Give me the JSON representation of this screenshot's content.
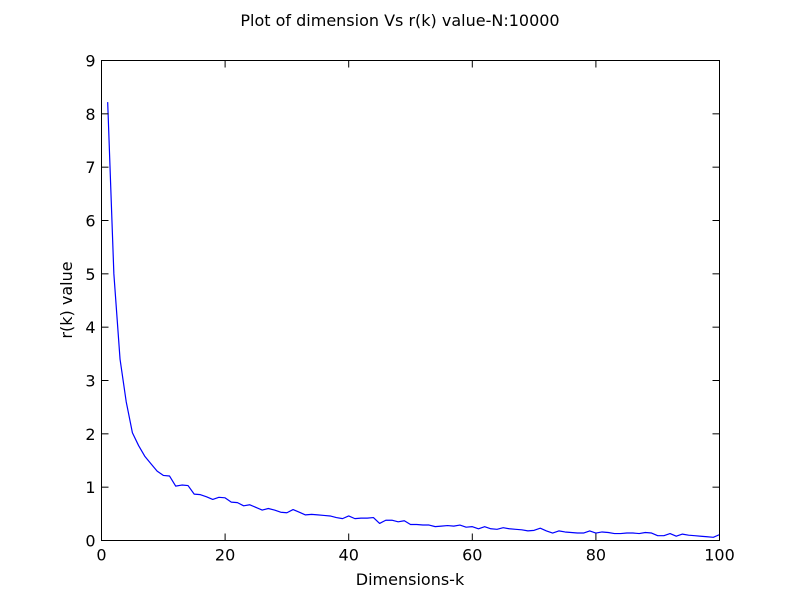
{
  "chart_data": {
    "type": "line",
    "title": "Plot of dimension Vs r(k) value-N:10000",
    "xlabel": "Dimensions-k",
    "ylabel": "r(k) value",
    "xlim": [
      0,
      100
    ],
    "ylim": [
      0,
      9
    ],
    "xticks": [
      0,
      20,
      40,
      60,
      80,
      100
    ],
    "yticks": [
      0,
      1,
      2,
      3,
      4,
      5,
      6,
      7,
      8,
      9
    ],
    "grid": false,
    "legend": "none",
    "series": [
      {
        "color": "#0000ff",
        "x": [
          1,
          2,
          3,
          4,
          5,
          6,
          7,
          8,
          9,
          10,
          11,
          12,
          13,
          14,
          15,
          16,
          17,
          18,
          19,
          20,
          21,
          22,
          23,
          24,
          25,
          26,
          27,
          28,
          29,
          30,
          31,
          32,
          33,
          34,
          35,
          36,
          37,
          38,
          39,
          40,
          41,
          42,
          43,
          44,
          45,
          46,
          47,
          48,
          49,
          50,
          51,
          52,
          53,
          54,
          55,
          56,
          57,
          58,
          59,
          60,
          61,
          62,
          63,
          64,
          65,
          66,
          67,
          68,
          69,
          70,
          71,
          72,
          73,
          74,
          75,
          76,
          77,
          78,
          79,
          80,
          81,
          82,
          83,
          84,
          85,
          86,
          87,
          88,
          89,
          90,
          91,
          92,
          93,
          94,
          95,
          96,
          97,
          98,
          99,
          100
        ],
        "y": [
          8.22,
          5.0,
          3.4,
          2.6,
          2.02,
          1.78,
          1.58,
          1.44,
          1.3,
          1.22,
          1.21,
          1.02,
          1.04,
          1.03,
          0.87,
          0.86,
          0.82,
          0.77,
          0.81,
          0.8,
          0.72,
          0.71,
          0.65,
          0.67,
          0.62,
          0.57,
          0.6,
          0.57,
          0.53,
          0.52,
          0.58,
          0.53,
          0.48,
          0.49,
          0.48,
          0.47,
          0.46,
          0.43,
          0.41,
          0.46,
          0.41,
          0.42,
          0.42,
          0.43,
          0.32,
          0.38,
          0.38,
          0.35,
          0.37,
          0.3,
          0.3,
          0.29,
          0.29,
          0.26,
          0.27,
          0.28,
          0.27,
          0.29,
          0.25,
          0.26,
          0.22,
          0.26,
          0.22,
          0.21,
          0.24,
          0.22,
          0.21,
          0.2,
          0.18,
          0.19,
          0.23,
          0.18,
          0.14,
          0.18,
          0.16,
          0.15,
          0.14,
          0.14,
          0.18,
          0.14,
          0.16,
          0.15,
          0.13,
          0.13,
          0.14,
          0.14,
          0.13,
          0.15,
          0.14,
          0.09,
          0.09,
          0.13,
          0.08,
          0.12,
          0.1,
          0.09,
          0.08,
          0.07,
          0.06,
          0.11
        ]
      }
    ]
  }
}
